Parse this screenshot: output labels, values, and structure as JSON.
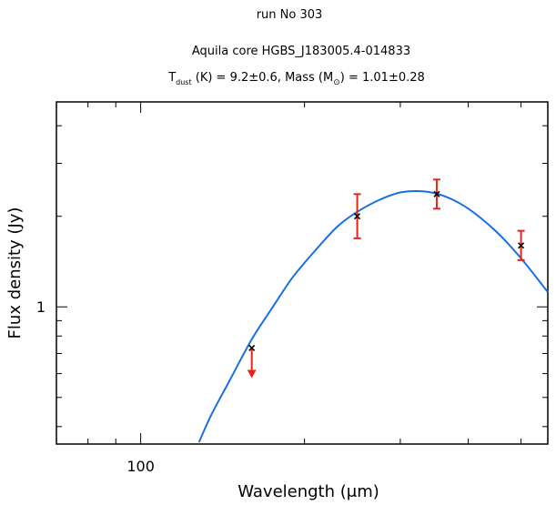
{
  "chart_data": {
    "type": "line",
    "title": "run No 303",
    "subtitle": "Aquila core HGBS_J183005.4-014833",
    "params": {
      "tdust_prefix": "T",
      "tdust_sub": "dust",
      "tdust_label": " (K) =  9.2±0.6, Mass (M",
      "mass_sub": "⊙",
      "mass_value": ") = 1.01±0.28"
    },
    "xlabel": "Wavelength (μm)",
    "ylabel": "Flux density (Jy)",
    "xscale": "log",
    "yscale": "log",
    "xlim": [
      70,
      560
    ],
    "ylim": [
      0.35,
      4.8
    ],
    "x_tick_labels": [
      {
        "value": 100,
        "label": "100"
      }
    ],
    "y_tick_labels": [
      {
        "value": 1,
        "label": "1"
      }
    ],
    "grid": false,
    "series": [
      {
        "type": "line",
        "color": "#1a6fe0",
        "x": [
          128,
          135,
          145,
          160,
          175,
          190,
          210,
          230,
          250,
          275,
          300,
          330,
          360,
          400,
          450,
          500,
          560
        ],
        "y": [
          0.355,
          0.44,
          0.56,
          0.78,
          1.0,
          1.25,
          1.55,
          1.85,
          2.07,
          2.27,
          2.4,
          2.42,
          2.34,
          2.12,
          1.78,
          1.45,
          1.12
        ]
      },
      {
        "type": "points",
        "color": "#e8231a",
        "points": [
          {
            "x": 160,
            "y": 0.73,
            "upper_limit": true
          },
          {
            "x": 250,
            "y": 2.0,
            "err_low": 0.31,
            "err_high": 0.37
          },
          {
            "x": 350,
            "y": 2.37,
            "err_low": 0.25,
            "err_high": 0.28
          },
          {
            "x": 500,
            "y": 1.6,
            "err_low": 0.17,
            "err_high": 0.19
          }
        ]
      }
    ]
  }
}
